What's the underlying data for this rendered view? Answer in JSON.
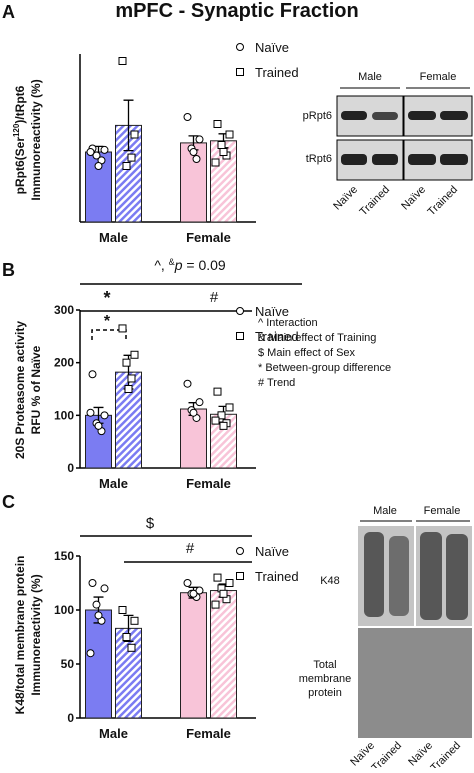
{
  "title": "mPFC - Synaptic Fraction",
  "chart_data": [
    {
      "type": "bar",
      "panel_label": "A",
      "ylabel": [
        [
          "pRpt6(Ser",
          "120",
          ")/tRpt6"
        ],
        [
          "Immunoreactivity (%)"
        ]
      ],
      "categories": [
        "Male",
        "Female"
      ],
      "ylim": [
        0,
        240
      ],
      "series": [
        {
          "name": "Naïve",
          "marker": "circle",
          "hatch": false,
          "colors": [
            "#7b7cf2",
            "#f8c4d8"
          ],
          "values": [
            100,
            113
          ],
          "errors": [
            8,
            10
          ],
          "points": [
            [
              105,
              103,
              95,
              88,
              80,
              100
            ],
            [
              150,
              118,
              105,
              90,
              100
            ]
          ]
        },
        {
          "name": "Trained",
          "marker": "square",
          "hatch": true,
          "colors": [
            "#7b7cf2",
            "#f8c4d8"
          ],
          "values": [
            138,
            116
          ],
          "errors": [
            36,
            10
          ],
          "points": [
            [
              230,
              125,
              80,
              92
            ],
            [
              140,
              125,
              110,
              95,
              100,
              85
            ]
          ]
        }
      ]
    },
    {
      "type": "bar",
      "panel_label": "B",
      "ylabel": [
        [
          "20S Proteasome activity"
        ],
        [
          "RFU % of Naïve"
        ]
      ],
      "categories": [
        "Male",
        "Female"
      ],
      "ylim": [
        0,
        300
      ],
      "yticks": [
        0,
        100,
        200,
        300
      ],
      "stat_label": [
        "^, ",
        "&",
        "p",
        " = 0.09"
      ],
      "significance": [
        "*",
        "*",
        "#"
      ],
      "key": [
        "^  Interaction",
        "&  Main effect of Training",
        "$  Main effect of Sex",
        "*   Between-group difference",
        "#  Trend"
      ],
      "series": [
        {
          "name": "Naïve",
          "marker": "circle",
          "hatch": false,
          "colors": [
            "#7b7cf2",
            "#f8c4d8"
          ],
          "values": [
            100,
            112
          ],
          "errors": [
            15,
            12
          ],
          "points": [
            [
              178,
              100,
              85,
              70,
              80,
              105
            ],
            [
              160,
              125,
              110,
              95,
              105
            ]
          ]
        },
        {
          "name": "Trained",
          "marker": "square",
          "hatch": true,
          "colors": [
            "#7b7cf2",
            "#f8c4d8"
          ],
          "values": [
            182,
            102
          ],
          "errors": [
            32,
            15
          ],
          "points": [
            [
              265,
              215,
              200,
              170,
              150
            ],
            [
              145,
              115,
              100,
              85,
              80,
              90
            ]
          ]
        }
      ]
    },
    {
      "type": "bar",
      "panel_label": "C",
      "ylabel": [
        [
          "K48/total membrane protein"
        ],
        [
          "Immunoreactivity (%)"
        ]
      ],
      "categories": [
        "Male",
        "Female"
      ],
      "ylim": [
        0,
        150
      ],
      "yticks": [
        0,
        50,
        100,
        150
      ],
      "significance": [
        "$",
        "#"
      ],
      "series": [
        {
          "name": "Naïve",
          "marker": "circle",
          "hatch": false,
          "colors": [
            "#7b7cf2",
            "#f8c4d8"
          ],
          "values": [
            100,
            116
          ],
          "errors": [
            12,
            5
          ],
          "points": [
            [
              125,
              120,
              105,
              90,
              95,
              60
            ],
            [
              125,
              118,
              115,
              112,
              115
            ]
          ]
        },
        {
          "name": "Trained",
          "marker": "square",
          "hatch": true,
          "colors": [
            "#7b7cf2",
            "#f8c4d8"
          ],
          "values": [
            83,
            118
          ],
          "errors": [
            12,
            6
          ],
          "points": [
            [
              100,
              90,
              75,
              65
            ],
            [
              130,
              125,
              120,
              110,
              115,
              105
            ]
          ]
        }
      ]
    }
  ],
  "blots": [
    {
      "columns": [
        "Male",
        "Female"
      ],
      "rows": [
        "pRpt6",
        "tRpt6"
      ],
      "lanes": [
        "Naïve",
        "Trained",
        "Naïve",
        "Trained"
      ]
    },
    {
      "columns": [
        "Male",
        "Female"
      ],
      "rows": [
        "K48",
        [
          "Total",
          "membrane",
          "protein"
        ]
      ],
      "lanes": [
        "Naïve",
        "Trained",
        "Naïve",
        "Trained"
      ]
    }
  ]
}
